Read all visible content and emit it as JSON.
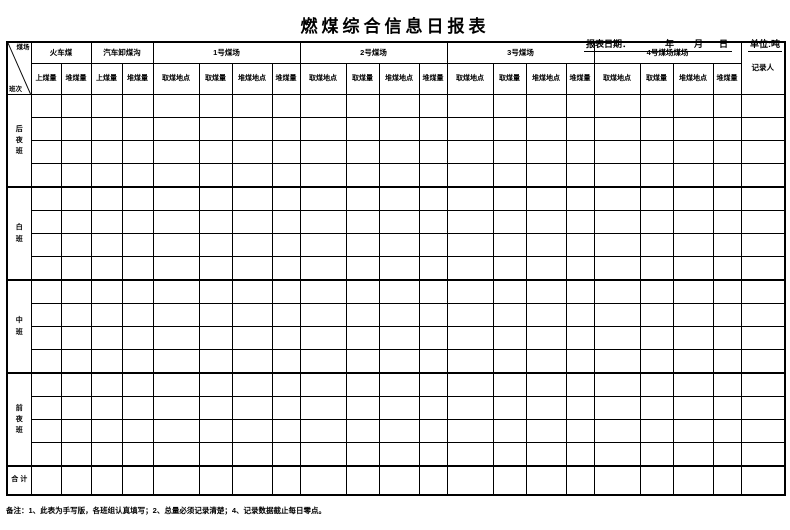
{
  "title": "燃煤综合信息日报表",
  "meta": {
    "date_label": "报表日期：",
    "year_label": "年",
    "month_label": "月",
    "day_label": "日",
    "unit_label": "单位:吨"
  },
  "table": {
    "corner": {
      "top": "煤场",
      "bottom": "班次"
    },
    "groups": [
      {
        "label": "火车煤",
        "sub": [
          "上煤量",
          "堆煤量"
        ]
      },
      {
        "label": "汽车卸煤沟",
        "sub": [
          "上煤量",
          "堆煤量"
        ]
      },
      {
        "label": "1号煤场",
        "sub": [
          "取煤地点",
          "取煤量",
          "堆煤地点",
          "堆煤量"
        ]
      },
      {
        "label": "2号煤场",
        "sub": [
          "取煤地点",
          "取煤量",
          "堆煤地点",
          "堆煤量"
        ]
      },
      {
        "label": "3号煤场",
        "sub": [
          "取煤地点",
          "取煤量",
          "堆煤地点",
          "堆煤量"
        ]
      },
      {
        "label": "4号煤场煤场",
        "sub": [
          "取煤地点",
          "取煤量",
          "堆煤地点",
          "堆煤量"
        ]
      }
    ],
    "recorder_label": "记录人",
    "shifts": [
      {
        "label": "后夜班",
        "rows": 4
      },
      {
        "label": "白班",
        "rows": 4
      },
      {
        "label": "中班",
        "rows": 4
      },
      {
        "label": "前夜班",
        "rows": 4
      }
    ],
    "total_label": "合 计",
    "data_columns": 21
  },
  "footer_note": "备注：1、此表为手写版，各班组认真填写；2、总量必须记录清楚；4、记录数据截止每日零点。",
  "colors": {
    "border": "#000000",
    "background": "#ffffff"
  }
}
